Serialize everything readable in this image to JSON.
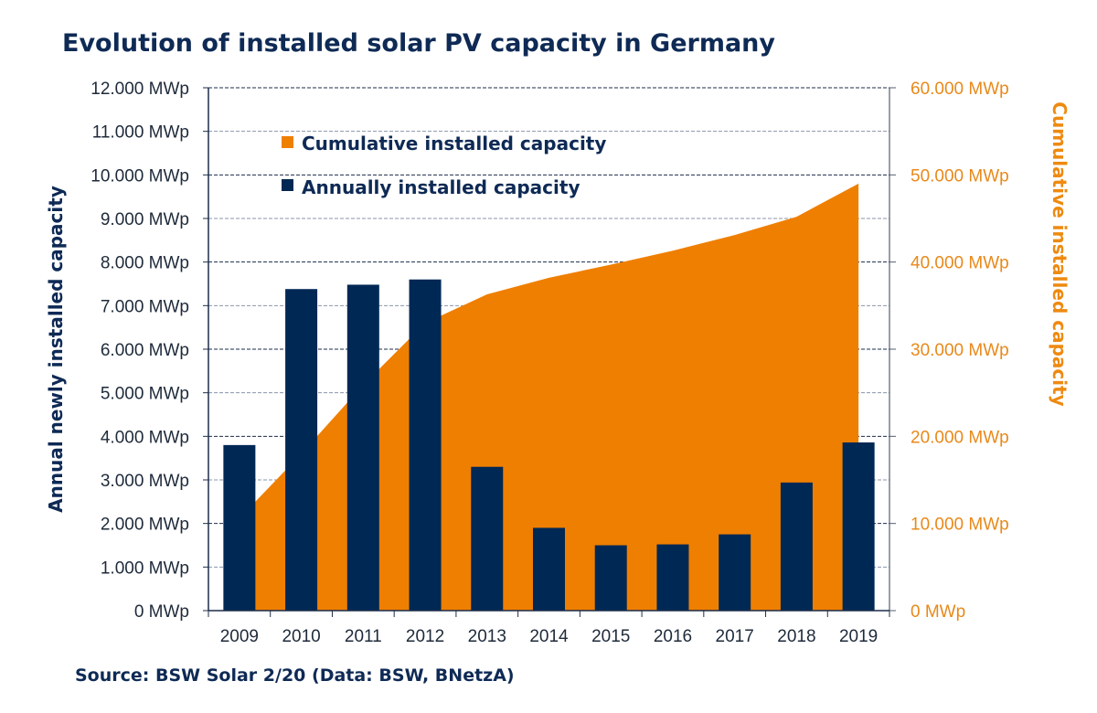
{
  "chart_data": {
    "type": "bar",
    "title": "Evolution of installed solar PV capacity in Germany",
    "source": "Source: BSW Solar 2/20 (Data: BSW, BNetzA)",
    "categories": [
      "2009",
      "2010",
      "2011",
      "2012",
      "2013",
      "2014",
      "2015",
      "2016",
      "2017",
      "2018",
      "2019"
    ],
    "series": [
      {
        "name": "Annually installed capacity",
        "type": "bar",
        "axis": "left",
        "color": "#002855",
        "values": [
          3800,
          7380,
          7480,
          7600,
          3300,
          1900,
          1500,
          1520,
          1750,
          2940,
          3860
        ]
      },
      {
        "name": "Cumulative installed capacity",
        "type": "area",
        "axis": "right",
        "color": "#ef7f00",
        "values": [
          10600,
          18000,
          25900,
          33000,
          36300,
          38200,
          39700,
          41300,
          43100,
          45200,
          49000
        ]
      }
    ],
    "ylabel_left": "Annual newly installed capacity",
    "ylabel_right": "Cumulative installed capacity",
    "ylim_left": [
      0,
      12000
    ],
    "ylim_right": [
      0,
      60000
    ],
    "yticks_left": [
      "0 MWp",
      "1.000 MWp",
      "2.000 MWp",
      "3.000 MWp",
      "4.000 MWp",
      "5.000 MWp",
      "6.000 MWp",
      "7.000 MWp",
      "8.000 MWp",
      "9.000 MWp",
      "10.000 MWp",
      "11.000 MWp",
      "12.000 MWp"
    ],
    "yticks_right": [
      "0 MWp",
      "10.000 MWp",
      "20.000 MWp",
      "30.000 MWp",
      "40.000 MWp",
      "50.000 MWp",
      "60.000 MWp"
    ],
    "grid": true,
    "legend": {
      "position": "top-left",
      "entries": [
        {
          "label": "Cumulative installed capacity",
          "color": "#ef7f00"
        },
        {
          "label": "Annually installed capacity",
          "color": "#002855"
        }
      ]
    }
  }
}
